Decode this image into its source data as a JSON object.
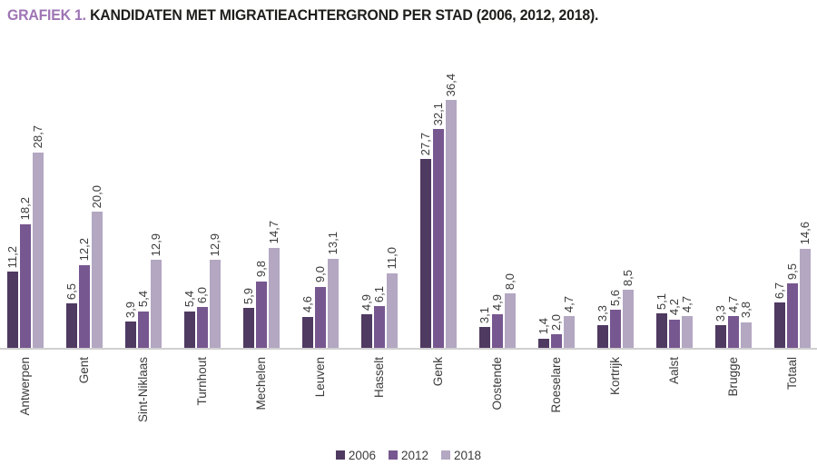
{
  "title": {
    "prefix": "GRAFIEK 1.",
    "text": " KANDIDATEN MET MIGRATIEACHTERGROND PER STAD (2006, 2012, 2018)."
  },
  "chart_data": {
    "type": "bar",
    "title": "GRAFIEK 1. KANDIDATEN MET MIGRATIEACHTERGROND PER STAD (2006, 2012, 2018).",
    "categories": [
      "Antwerpen",
      "Gent",
      "Sint-Niklaas",
      "Turnhout",
      "Mechelen",
      "Leuven",
      "Hasselt",
      "Genk",
      "Oostende",
      "Roeselare",
      "Kortrijk",
      "Aalst",
      "Brugge",
      "Totaal"
    ],
    "series": [
      {
        "name": "2006",
        "color": "#4f3a62",
        "values": [
          11.2,
          6.5,
          3.9,
          5.4,
          5.9,
          4.6,
          4.9,
          27.7,
          3.1,
          1.4,
          3.3,
          5.1,
          3.3,
          6.7
        ]
      },
      {
        "name": "2012",
        "color": "#775790",
        "values": [
          18.2,
          12.2,
          5.4,
          6.0,
          9.8,
          9.0,
          6.1,
          32.1,
          4.9,
          2.0,
          5.6,
          4.2,
          4.7,
          9.5
        ]
      },
      {
        "name": "2018",
        "color": "#b3a7c2",
        "values": [
          28.7,
          20.0,
          12.9,
          12.9,
          14.7,
          13.1,
          11.0,
          36.4,
          8.0,
          4.7,
          8.5,
          4.7,
          3.8,
          14.6
        ]
      }
    ],
    "xlabel": "",
    "ylabel": "",
    "ylim": [
      0,
      40
    ],
    "grid": false,
    "value_labels": true,
    "decimal_separator": ",",
    "label_rotation_degrees": 90,
    "legend_position": "bottom"
  },
  "colors": {
    "title_prefix": "#9e74b4",
    "title_text": "#1d1d1b",
    "axis_line": "#d0d0d0",
    "label_text": "#3b3b3b",
    "series_2006": "#4f3a62",
    "series_2012": "#775790",
    "series_2018": "#b3a7c2"
  }
}
